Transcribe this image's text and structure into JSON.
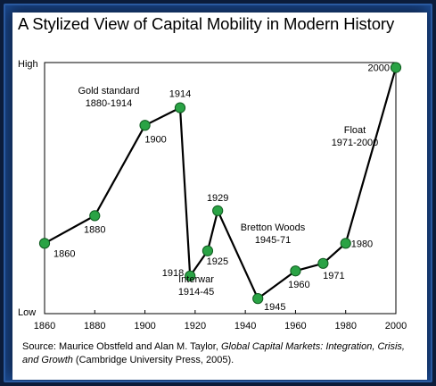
{
  "title": "A Stylized View of Capital Mobility in Modern History",
  "source": {
    "prefix": "Source: Maurice Obstfeld and Alan M. Taylor, ",
    "book": "Global Capital Markets: Integration, Crisis, and Growth",
    "suffix": " (Cambridge University Press, 2005)."
  },
  "colors": {
    "line": "#000000",
    "marker": "#2aa345",
    "marker_edge": "#0e5a1e",
    "frame": "#0d2245"
  },
  "chart_data": {
    "type": "line",
    "title": "A Stylized View of Capital Mobility in Modern History",
    "xlabel": "",
    "ylabel": "",
    "xlim": [
      1860,
      2000
    ],
    "ylim": [
      0,
      100
    ],
    "y_tick_labels": {
      "low": "Low",
      "high": "High"
    },
    "x_ticks": [
      1860,
      1880,
      1900,
      1920,
      1940,
      1960,
      1980,
      2000
    ],
    "grid": false,
    "points": [
      {
        "x": 1860,
        "y": 28,
        "label": "1860"
      },
      {
        "x": 1880,
        "y": 39,
        "label": "1880"
      },
      {
        "x": 1900,
        "y": 75,
        "label": "1900"
      },
      {
        "x": 1914,
        "y": 82,
        "label": "1914"
      },
      {
        "x": 1918,
        "y": 15,
        "label": "1918"
      },
      {
        "x": 1925,
        "y": 25,
        "label": "1925"
      },
      {
        "x": 1929,
        "y": 41,
        "label": "1929"
      },
      {
        "x": 1945,
        "y": 6,
        "label": "1945"
      },
      {
        "x": 1960,
        "y": 17,
        "label": "1960"
      },
      {
        "x": 1971,
        "y": 20,
        "label": "1971"
      },
      {
        "x": 1980,
        "y": 28,
        "label": "1980"
      },
      {
        "x": 2000,
        "y": 98,
        "label": "2000"
      }
    ],
    "annotations": [
      {
        "lines": [
          "Gold standard",
          "1880-1914"
        ]
      },
      {
        "lines": [
          "Interwar",
          "1914-45"
        ]
      },
      {
        "lines": [
          "Bretton Woods",
          "1945-71"
        ]
      },
      {
        "lines": [
          "Float",
          "1971-2000"
        ]
      }
    ]
  }
}
